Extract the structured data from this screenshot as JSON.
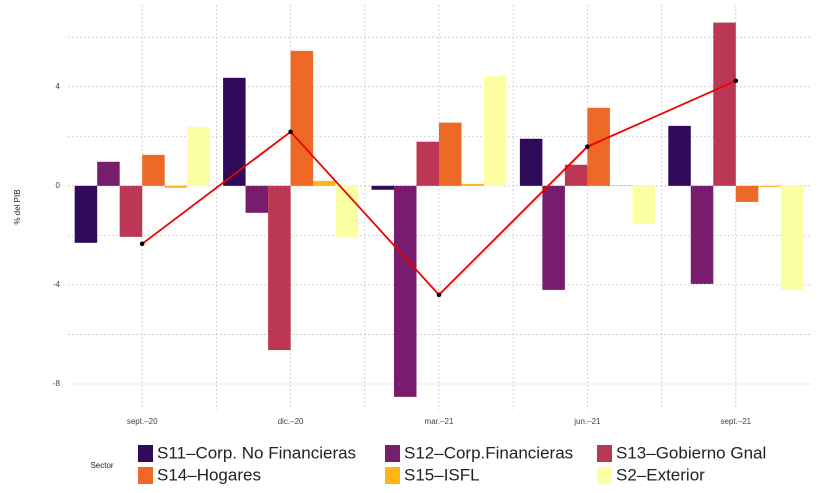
{
  "chart_data": {
    "type": "bar",
    "y_label": "% del PIB",
    "legend_title": "Sector",
    "categories": [
      "sept.–20",
      "dic.–20",
      "mar.–21",
      "jun.–21",
      "sept.–21"
    ],
    "series": [
      {
        "name": "S11–Corp. No Financieras",
        "color": "#300b5c",
        "values": [
          -2.3,
          4.36,
          -0.16,
          1.9,
          2.42
        ]
      },
      {
        "name": "S12–Corp.Financieras",
        "color": "#781c6d",
        "values": [
          0.97,
          -1.09,
          -8.52,
          -4.2,
          -3.96
        ]
      },
      {
        "name": "S13–Gobierno Gnal",
        "color": "#bc3754",
        "values": [
          -2.06,
          -6.63,
          1.78,
          0.85,
          6.59
        ]
      },
      {
        "name": "S14–Hogares",
        "color": "#ed6925",
        "values": [
          1.25,
          5.45,
          2.55,
          3.15,
          -0.65
        ]
      },
      {
        "name": "S15–ISFL",
        "color": "#fbb61a",
        "values": [
          -0.08,
          0.2,
          0.08,
          0.02,
          -0.04
        ]
      },
      {
        "name": "S2–Exterior",
        "color": "#fcffa4",
        "values": [
          2.38,
          -2.1,
          4.44,
          -1.54,
          -4.2
        ]
      }
    ],
    "line": {
      "color": "#ee0000",
      "values": [
        -2.34,
        2.18,
        -4.4,
        1.58,
        4.24
      ]
    },
    "ylim": [
      -9.05,
      7.3
    ],
    "yticks": [
      -8,
      -4,
      0,
      4
    ],
    "yminorticks": [
      -6,
      -2,
      2,
      6
    ],
    "grid": true
  }
}
